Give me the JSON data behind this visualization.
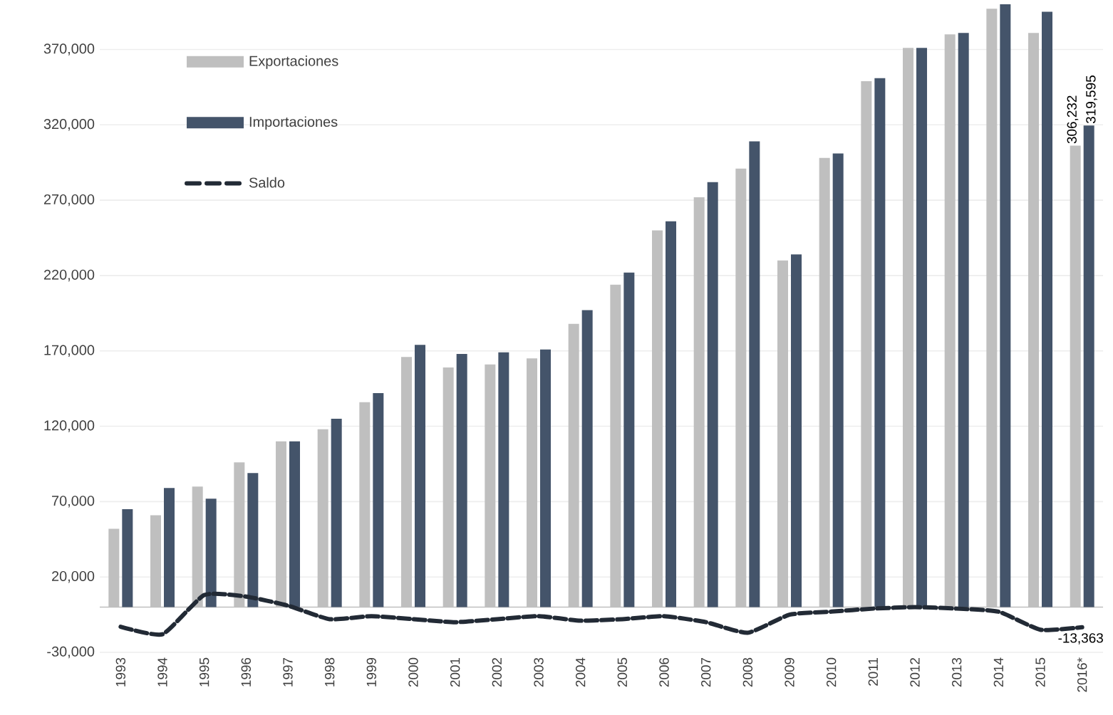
{
  "chart_data": {
    "type": "bar",
    "categories": [
      "1993",
      "1994",
      "1995",
      "1996",
      "1997",
      "1998",
      "1999",
      "2000",
      "2001",
      "2002",
      "2003",
      "2004",
      "2005",
      "2006",
      "2007",
      "2008",
      "2009",
      "2010",
      "2011",
      "2012",
      "2013",
      "2014",
      "2015",
      "2016*"
    ],
    "series": [
      {
        "name": "Exportaciones",
        "color": "#bfbfbf",
        "values": [
          52000,
          61000,
          80000,
          96000,
          110000,
          118000,
          136000,
          166000,
          159000,
          161000,
          165000,
          188000,
          214000,
          250000,
          272000,
          291000,
          230000,
          298000,
          349000,
          371000,
          380000,
          397000,
          381000,
          306232
        ],
        "value_labels": [
          null,
          null,
          null,
          null,
          null,
          null,
          null,
          null,
          null,
          null,
          null,
          null,
          null,
          null,
          null,
          null,
          null,
          null,
          null,
          null,
          null,
          null,
          null,
          "306,232"
        ]
      },
      {
        "name": "Importaciones",
        "color": "#44546a",
        "values": [
          65000,
          79000,
          72000,
          89000,
          110000,
          125000,
          142000,
          174000,
          168000,
          169000,
          171000,
          197000,
          222000,
          256000,
          282000,
          309000,
          234000,
          301000,
          351000,
          371000,
          381000,
          400000,
          395000,
          319595
        ],
        "value_labels": [
          null,
          null,
          null,
          null,
          null,
          null,
          null,
          null,
          null,
          null,
          null,
          null,
          null,
          null,
          null,
          null,
          null,
          null,
          null,
          null,
          null,
          null,
          null,
          "319,595"
        ]
      },
      {
        "name": "Saldo",
        "type": "line",
        "color": "#222a35",
        "line_style": "dashed",
        "marker": "none",
        "values": [
          -13000,
          -18000,
          8000,
          7000,
          1000,
          -8000,
          -6000,
          -8000,
          -10000,
          -8000,
          -6000,
          -9000,
          -8000,
          -6000,
          -10000,
          -17000,
          -5000,
          -3000,
          -1000,
          0,
          -1000,
          -3000,
          -15000,
          -13363
        ],
        "value_labels": [
          null,
          null,
          null,
          null,
          null,
          null,
          null,
          null,
          null,
          null,
          null,
          null,
          null,
          null,
          null,
          null,
          null,
          null,
          null,
          null,
          null,
          null,
          null,
          "-13,363"
        ]
      }
    ],
    "ylim": [
      -30000,
      400000
    ],
    "yticks": [
      {
        "value": -30000,
        "label": "-30,000"
      },
      {
        "value": 20000,
        "label": "20,000"
      },
      {
        "value": 70000,
        "label": "70,000"
      },
      {
        "value": 120000,
        "label": "120,000"
      },
      {
        "value": 170000,
        "label": "170,000"
      },
      {
        "value": 220000,
        "label": "220,000"
      },
      {
        "value": 270000,
        "label": "270,000"
      },
      {
        "value": 320000,
        "label": "320,000"
      },
      {
        "value": 370000,
        "label": "370,000"
      }
    ],
    "grid": "y",
    "legend": "top left"
  }
}
